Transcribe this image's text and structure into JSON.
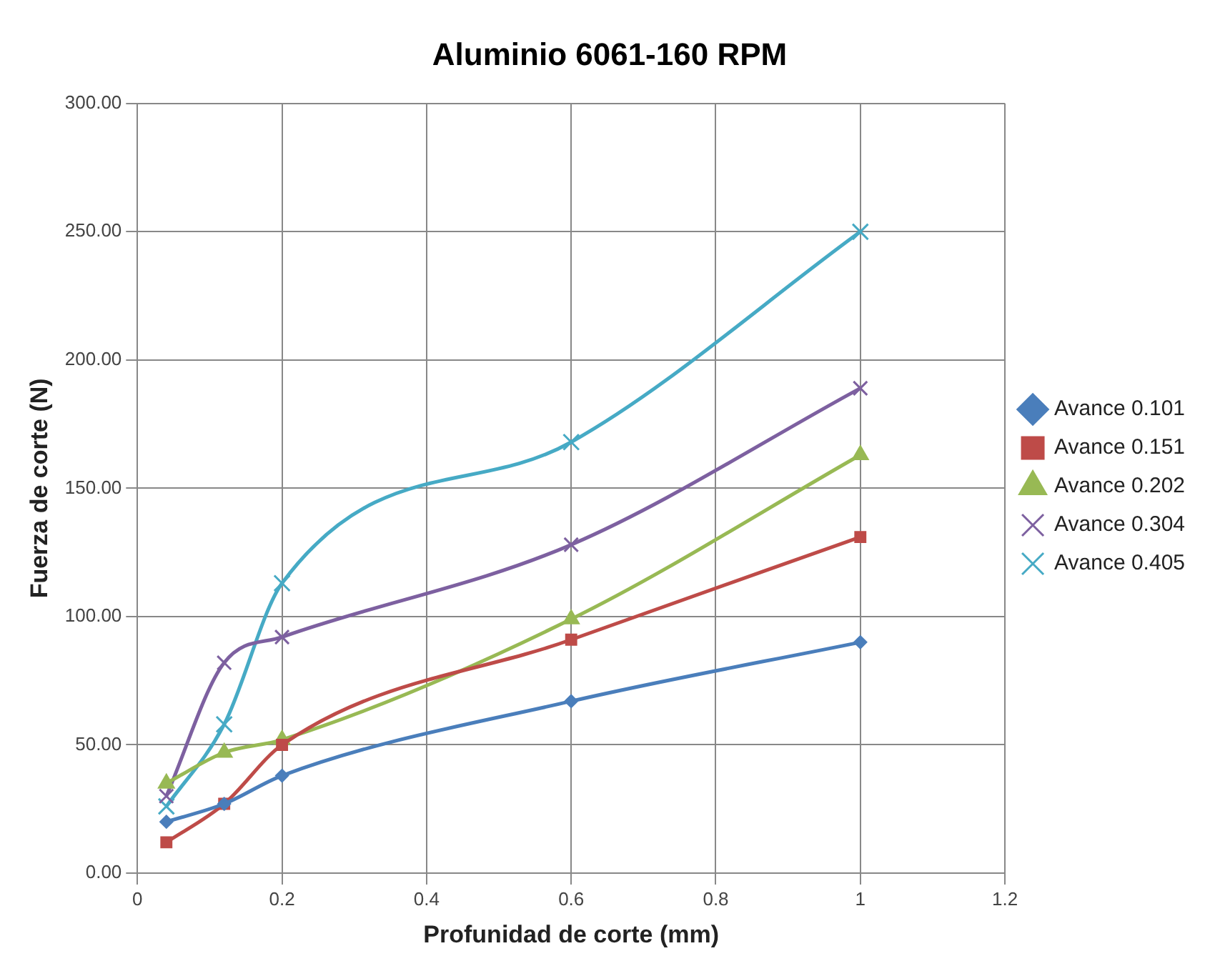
{
  "chart_data": {
    "type": "line",
    "title": "Aluminio 6061-160 RPM",
    "xlabel": "Profunidad de corte (mm)",
    "ylabel": "Fuerza de corte (N)",
    "x": [
      0.04,
      0.12,
      0.2,
      0.6,
      1
    ],
    "series": [
      {
        "name": "Avance 0.101",
        "color": "#4a7ebb",
        "marker": "diamond",
        "values": [
          20,
          27,
          38,
          67,
          90
        ]
      },
      {
        "name": "Avance 0.151",
        "color": "#be4b48",
        "marker": "square",
        "values": [
          12,
          27,
          50,
          91,
          131
        ]
      },
      {
        "name": "Avance 0.202",
        "color": "#98b954",
        "marker": "triangle",
        "values": [
          35,
          47,
          52,
          99,
          163
        ]
      },
      {
        "name": "Avance 0.304",
        "color": "#7d60a0",
        "marker": "cross",
        "values": [
          30,
          82,
          92,
          128,
          189
        ]
      },
      {
        "name": "Avance 0.405",
        "color": "#46aac5",
        "marker": "cross",
        "values": [
          26,
          58,
          113,
          168,
          250
        ]
      }
    ],
    "xlim": [
      0,
      1.2
    ],
    "xticks": [
      0,
      0.2,
      0.4,
      0.6,
      0.8,
      1,
      1.2
    ],
    "ylim": [
      0,
      300
    ],
    "yticks": [
      {
        "value": 0,
        "label": "0.00"
      },
      {
        "value": 50,
        "label": "50.00"
      },
      {
        "value": 100,
        "label": "100.00"
      },
      {
        "value": 150,
        "label": "150.00"
      },
      {
        "value": 200,
        "label": "200.00"
      },
      {
        "value": 250,
        "label": "250.00"
      },
      {
        "value": 300,
        "label": "300.00"
      }
    ],
    "grid": true,
    "legend": "right",
    "line_style": "solid"
  }
}
